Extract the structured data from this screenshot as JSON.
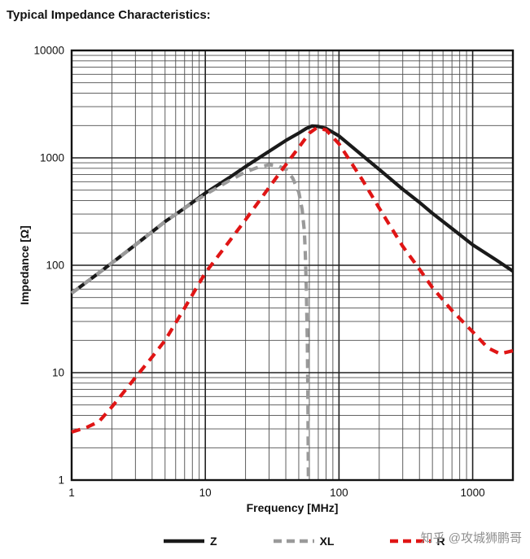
{
  "watermark": {
    "text": "知乎 @攻城狮鹏哥"
  },
  "chart_data": {
    "type": "line",
    "title": "Typical Impedance Characteristics:",
    "xlabel": "Frequency [MHz]",
    "ylabel": "Impedance [Ω]",
    "xscale": "log",
    "yscale": "log",
    "xlim": [
      1,
      2000
    ],
    "ylim": [
      1,
      10000
    ],
    "x_ticks": [
      1,
      10,
      100,
      1000
    ],
    "y_ticks": [
      1,
      10,
      100,
      1000,
      10000
    ],
    "grid": "log major and minor lines, dark",
    "legend_position": "bottom",
    "series": [
      {
        "name": "Z",
        "color": "#1a1a1a",
        "style": "solid",
        "points": [
          [
            1,
            55
          ],
          [
            1.5,
            80
          ],
          [
            2,
            105
          ],
          [
            3,
            155
          ],
          [
            4,
            205
          ],
          [
            5,
            255
          ],
          [
            7,
            340
          ],
          [
            10,
            470
          ],
          [
            15,
            650
          ],
          [
            20,
            830
          ],
          [
            30,
            1150
          ],
          [
            40,
            1450
          ],
          [
            50,
            1700
          ],
          [
            57,
            1880
          ],
          [
            63,
            1980
          ],
          [
            70,
            1960
          ],
          [
            80,
            1880
          ],
          [
            100,
            1600
          ],
          [
            150,
            1050
          ],
          [
            200,
            780
          ],
          [
            300,
            510
          ],
          [
            400,
            385
          ],
          [
            500,
            305
          ],
          [
            700,
            220
          ],
          [
            1000,
            155
          ],
          [
            1500,
            112
          ],
          [
            2000,
            88
          ]
        ]
      },
      {
        "name": "XL",
        "color": "#9a9a9a",
        "style": "dashed",
        "points": [
          [
            1,
            55
          ],
          [
            1.5,
            80
          ],
          [
            2,
            105
          ],
          [
            3,
            155
          ],
          [
            4,
            205
          ],
          [
            5,
            255
          ],
          [
            7,
            340
          ],
          [
            10,
            455
          ],
          [
            15,
            610
          ],
          [
            20,
            740
          ],
          [
            25,
            820
          ],
          [
            30,
            860
          ],
          [
            35,
            845
          ],
          [
            40,
            780
          ],
          [
            45,
            650
          ],
          [
            50,
            480
          ],
          [
            53,
            330
          ],
          [
            55,
            210
          ],
          [
            56,
            130
          ],
          [
            57,
            60
          ],
          [
            58,
            20
          ],
          [
            58.5,
            6
          ],
          [
            59,
            1.05
          ]
        ]
      },
      {
        "name": "R",
        "color": "#e01515",
        "style": "dashed",
        "points": [
          [
            1,
            2.8
          ],
          [
            1.3,
            3.1
          ],
          [
            1.6,
            3.5
          ],
          [
            2,
            4.8
          ],
          [
            3,
            9
          ],
          [
            4,
            14
          ],
          [
            5,
            20
          ],
          [
            7,
            40
          ],
          [
            10,
            85
          ],
          [
            15,
            165
          ],
          [
            20,
            265
          ],
          [
            30,
            530
          ],
          [
            40,
            860
          ],
          [
            50,
            1250
          ],
          [
            60,
            1700
          ],
          [
            68,
            1900
          ],
          [
            80,
            1820
          ],
          [
            100,
            1350
          ],
          [
            150,
            620
          ],
          [
            200,
            340
          ],
          [
            300,
            150
          ],
          [
            400,
            92
          ],
          [
            500,
            62
          ],
          [
            700,
            38
          ],
          [
            1000,
            24
          ],
          [
            1300,
            17
          ],
          [
            1600,
            15
          ],
          [
            2000,
            16
          ]
        ]
      }
    ]
  }
}
